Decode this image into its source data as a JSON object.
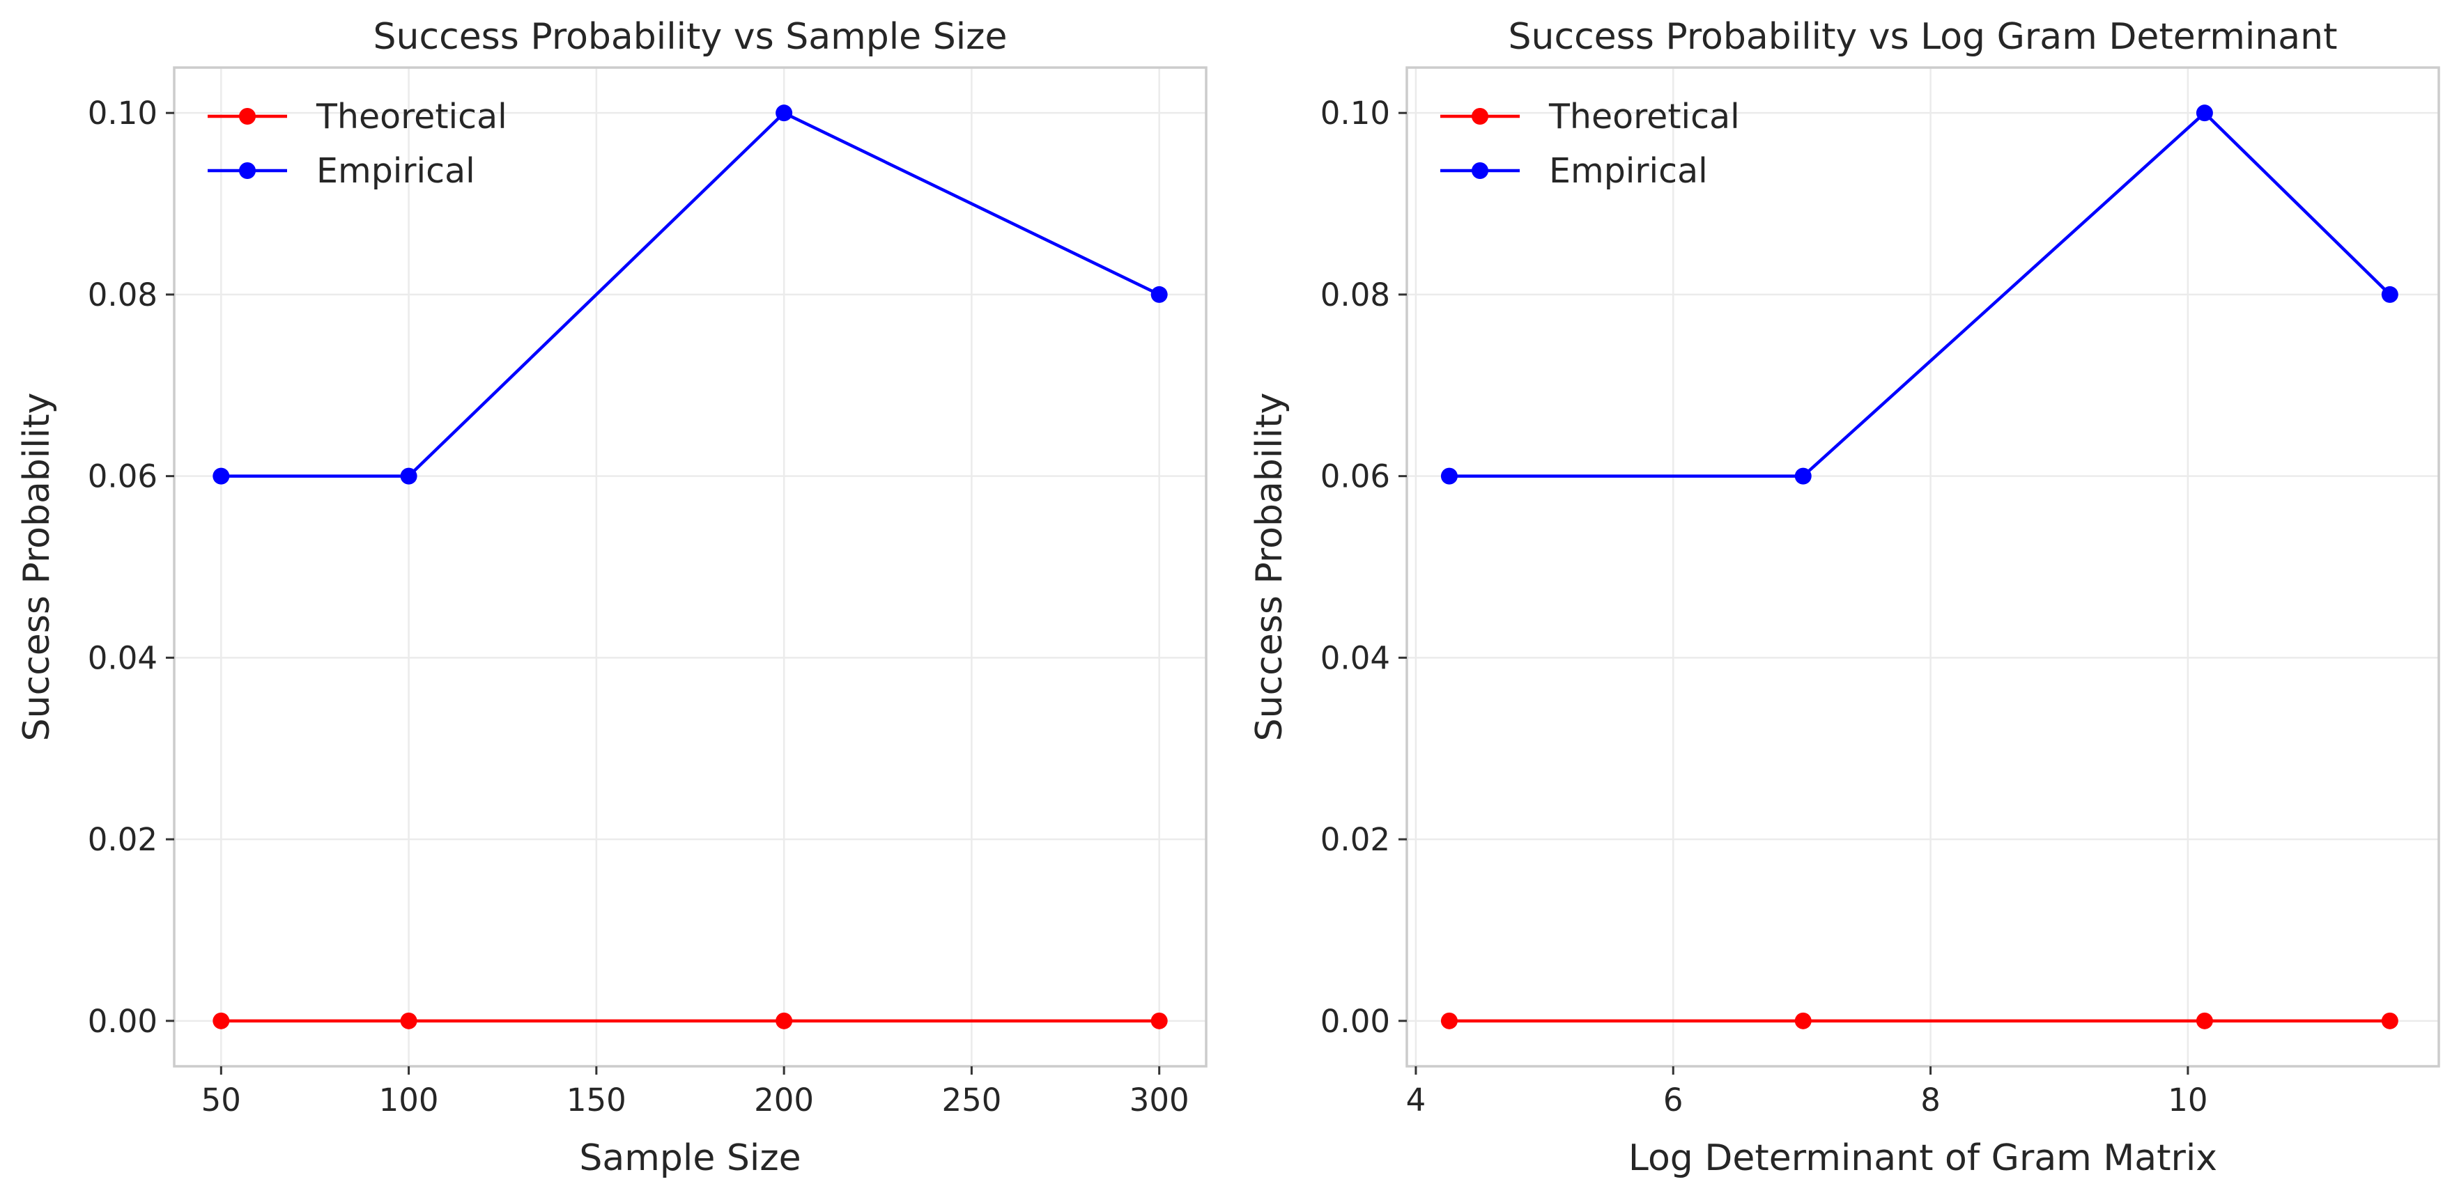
{
  "chart_data": [
    {
      "type": "line",
      "title": "Success Probability vs Sample Size",
      "xlabel": "Sample Size",
      "ylabel": "Success Probability",
      "x": [
        50,
        100,
        200,
        300
      ],
      "xlim": [
        37.5,
        312.5
      ],
      "ylim": [
        -0.005,
        0.105
      ],
      "xticks": [
        50,
        100,
        150,
        200,
        250,
        300
      ],
      "yticks": [
        0.0,
        0.02,
        0.04,
        0.06,
        0.08,
        0.1
      ],
      "grid": true,
      "legend": "top-left",
      "series": [
        {
          "name": "Theoretical",
          "color": "#ff0000",
          "values": [
            0.0,
            0.0,
            0.0,
            0.0
          ]
        },
        {
          "name": "Empirical",
          "color": "#0000ff",
          "values": [
            0.06,
            0.06,
            0.1,
            0.08
          ]
        }
      ]
    },
    {
      "type": "line",
      "title": "Success Probability vs Log Gram Determinant",
      "xlabel": "Log Determinant of Gram Matrix",
      "ylabel": "Success Probability",
      "x": [
        4.26,
        7.01,
        10.13,
        11.57
      ],
      "xlim": [
        3.93,
        11.95
      ],
      "ylim": [
        -0.005,
        0.105
      ],
      "xticks": [
        4,
        6,
        8,
        10
      ],
      "yticks": [
        0.0,
        0.02,
        0.04,
        0.06,
        0.08,
        0.1
      ],
      "grid": true,
      "legend": "top-left",
      "series": [
        {
          "name": "Theoretical",
          "color": "#ff0000",
          "values": [
            0.0,
            0.0,
            0.0,
            0.0
          ]
        },
        {
          "name": "Empirical",
          "color": "#0000ff",
          "values": [
            0.06,
            0.06,
            0.1,
            0.08
          ]
        }
      ]
    }
  ]
}
